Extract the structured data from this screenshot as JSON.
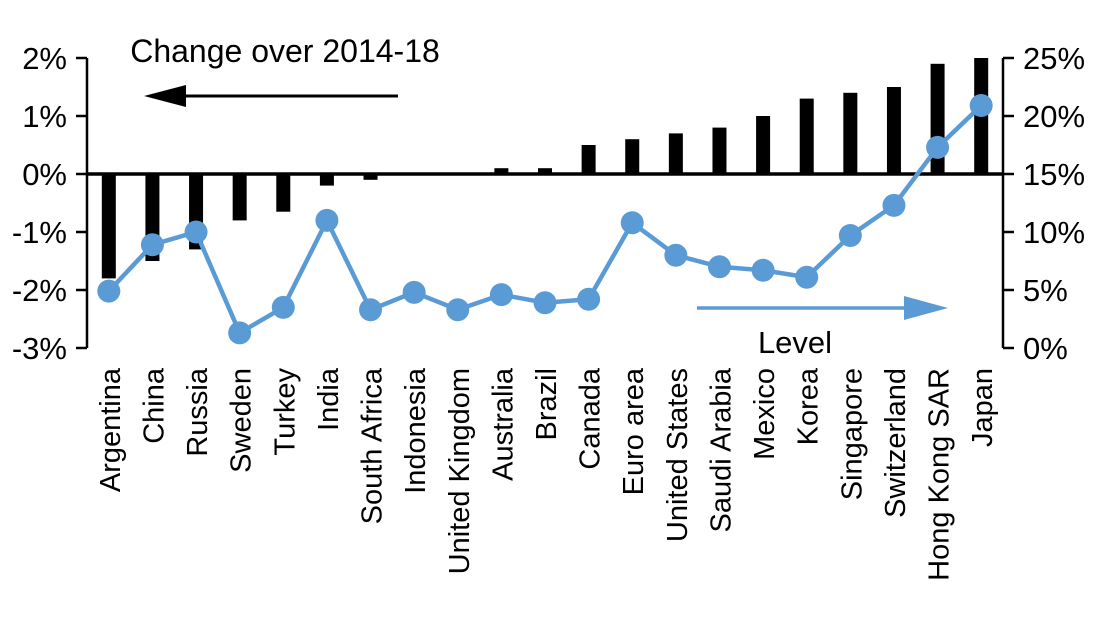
{
  "chart_data": {
    "type": "combo",
    "categories": [
      "Argentina",
      "China",
      "Russia",
      "Sweden",
      "Turkey",
      "India",
      "South Africa",
      "Indonesia",
      "United Kingdom",
      "Australia",
      "Brazil",
      "Canada",
      "Euro area",
      "United States",
      "Saudi Arabia",
      "Mexico",
      "Korea",
      "Singapore",
      "Switzerland",
      "Hong Kong SAR",
      "Japan"
    ],
    "series": [
      {
        "name": "Change over 2014-18",
        "type": "bar",
        "axis": "left",
        "color": "#000000",
        "values": [
          -1.8,
          -1.5,
          -1.3,
          -0.8,
          -0.65,
          -0.2,
          -0.1,
          0,
          0,
          0.1,
          0.1,
          0.5,
          0.6,
          0.7,
          0.8,
          1.0,
          1.3,
          1.4,
          1.5,
          1.9,
          2.0
        ]
      },
      {
        "name": "Level",
        "type": "line",
        "axis": "right",
        "color": "#5B9BD5",
        "values": [
          4.9,
          8.9,
          10.0,
          1.3,
          3.5,
          11.0,
          3.3,
          4.8,
          3.3,
          4.6,
          3.9,
          4.2,
          10.8,
          8.0,
          7.0,
          6.7,
          6.1,
          9.7,
          12.3,
          17.3,
          20.9
        ]
      }
    ],
    "left_axis": {
      "min": -3,
      "max": 2,
      "tick_values": [
        2,
        1,
        0,
        -1,
        -2,
        -3
      ],
      "tick_labels": [
        "2%",
        "1%",
        "0%",
        "-1%",
        "-2%",
        "-3%"
      ]
    },
    "right_axis": {
      "min": 0,
      "max": 25,
      "tick_values": [
        25,
        20,
        15,
        10,
        5,
        0
      ],
      "tick_labels": [
        "25%",
        "20%",
        "15%",
        "10%",
        "5%",
        "0%"
      ]
    },
    "annotations": [
      {
        "text": "Change over 2014-18",
        "arrow_direction": "left",
        "arrow_color": "#000000",
        "text_color": "#000000"
      },
      {
        "text": "Level",
        "arrow_direction": "right",
        "arrow_color": "#5B9BD5",
        "text_color": "#000000"
      }
    ],
    "grid": false,
    "legend_position": "in-plot-arrows",
    "title": "",
    "xlabel": "",
    "ylabel_left": "",
    "ylabel_right": ""
  },
  "colors": {
    "bar": "#000000",
    "line": "#5B9BD5",
    "axis": "#000000",
    "background": "#ffffff"
  }
}
